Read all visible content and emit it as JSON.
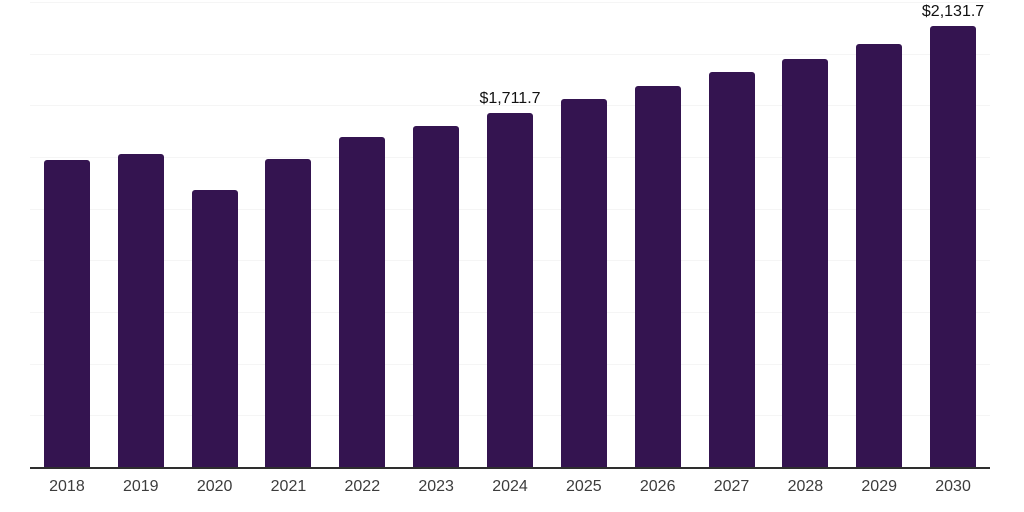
{
  "chart_data": {
    "type": "bar",
    "title": "",
    "xlabel": "",
    "ylabel": "",
    "categories": [
      "2018",
      "2019",
      "2020",
      "2021",
      "2022",
      "2023",
      "2024",
      "2025",
      "2026",
      "2027",
      "2028",
      "2029",
      "2030"
    ],
    "values": [
      1485,
      1515,
      1340,
      1490,
      1595,
      1650,
      1711.7,
      1780,
      1845,
      1910,
      1975,
      2045,
      2131.7
    ],
    "data_labels": [
      "",
      "",
      "",
      "",
      "",
      "",
      "$1,711.7",
      "",
      "",
      "",
      "",
      "",
      "$2,131.7"
    ],
    "ylim": [
      0,
      2250
    ],
    "grid_step": 250,
    "grid": true,
    "legend": false,
    "y_tick_labels_visible": false,
    "colors": {
      "bar": "#341450",
      "grid": "#f5f5f5",
      "axis": "#2e2e2e",
      "tick_label": "#3c3c3c",
      "value_label": "#111111",
      "background": "#ffffff"
    }
  }
}
